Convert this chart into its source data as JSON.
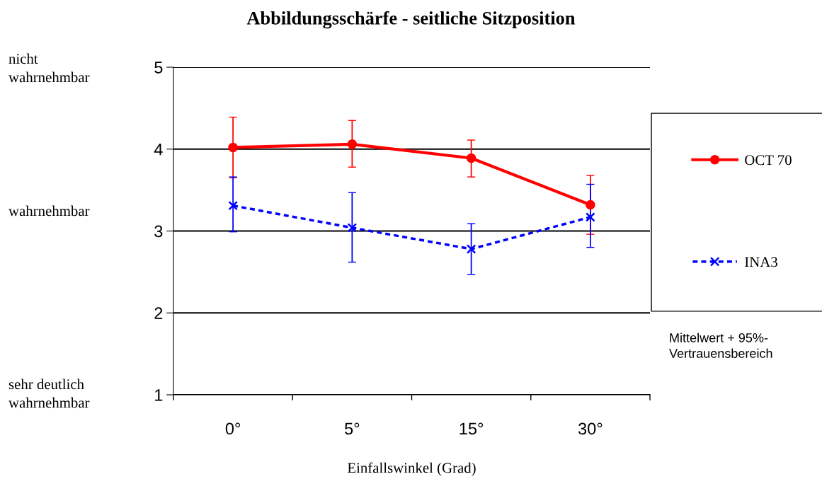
{
  "chart_data": {
    "type": "line",
    "title": "Abbildungsschärfe - seitliche Sitzposition",
    "xlabel": "Einfallswinkel (Grad)",
    "categories": [
      "0°",
      "5°",
      "15°",
      "30°"
    ],
    "series": [
      {
        "name": "OCT 70",
        "color": "#ff0000",
        "marker": "circle",
        "line_style": "solid",
        "values": [
          4.02,
          4.06,
          3.89,
          3.32
        ],
        "errors": [
          [
            3.65,
            4.39
          ],
          [
            3.78,
            4.35
          ],
          [
            3.66,
            4.11
          ],
          [
            2.96,
            3.68
          ]
        ]
      },
      {
        "name": "INA3",
        "color": "#0000ff",
        "marker": "cross",
        "line_style": "dashed",
        "values": [
          3.31,
          3.04,
          2.78,
          3.17
        ],
        "errors": [
          [
            2.99,
            3.66
          ],
          [
            2.62,
            3.47
          ],
          [
            2.47,
            3.09
          ],
          [
            2.8,
            3.57
          ]
        ]
      }
    ],
    "ylim": [
      1,
      5
    ],
    "yticks": [
      1,
      2,
      3,
      4,
      5
    ],
    "grid": "y",
    "legend": "right",
    "annotations": [
      "nicht\nwahrnehmbar",
      "wahrnehmbar",
      "sehr deutlich\nwahrnehmbar",
      "Mittelwert + 95%-\nVertrauensbereich"
    ]
  }
}
